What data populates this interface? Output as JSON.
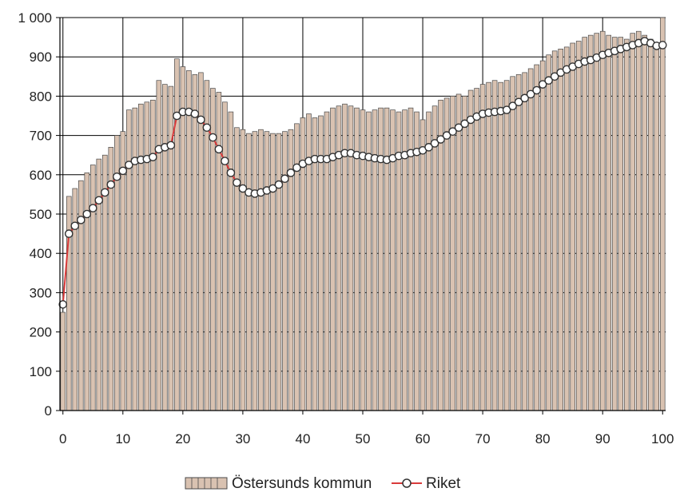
{
  "chart_data": {
    "type": "bar",
    "title": "",
    "xlabel": "",
    "ylabel": "",
    "xlim": [
      -0.5,
      100.5
    ],
    "ylim": [
      0,
      1000
    ],
    "x_ticks": [
      0,
      10,
      20,
      30,
      40,
      50,
      60,
      70,
      80,
      90,
      100
    ],
    "x_tick_labels": [
      "0",
      "10",
      "20",
      "30",
      "40",
      "50",
      "60",
      "70",
      "80",
      "90",
      "100"
    ],
    "y_ticks": [
      0,
      100,
      200,
      300,
      400,
      500,
      600,
      700,
      800,
      900,
      1000
    ],
    "y_tick_labels": [
      "0",
      "100",
      "200",
      "300",
      "400",
      "500",
      "600",
      "700",
      "800",
      "900",
      "1 000"
    ],
    "grid": true,
    "legend_position": "bottom",
    "colors": {
      "bar_fill": "#d9c2b1",
      "bar_stroke": "#4a4a4a",
      "line": "#d93a3a",
      "marker_fill": "#ffffff",
      "marker_stroke": "#333333",
      "grid": "#000000"
    },
    "x": [
      0,
      1,
      2,
      3,
      4,
      5,
      6,
      7,
      8,
      9,
      10,
      11,
      12,
      13,
      14,
      15,
      16,
      17,
      18,
      19,
      20,
      21,
      22,
      23,
      24,
      25,
      26,
      27,
      28,
      29,
      30,
      31,
      32,
      33,
      34,
      35,
      36,
      37,
      38,
      39,
      40,
      41,
      42,
      43,
      44,
      45,
      46,
      47,
      48,
      49,
      50,
      51,
      52,
      53,
      54,
      55,
      56,
      57,
      58,
      59,
      60,
      61,
      62,
      63,
      64,
      65,
      66,
      67,
      68,
      69,
      70,
      71,
      72,
      73,
      74,
      75,
      76,
      77,
      78,
      79,
      80,
      81,
      82,
      83,
      84,
      85,
      86,
      87,
      88,
      89,
      90,
      91,
      92,
      93,
      94,
      95,
      96,
      97,
      98,
      99,
      100
    ],
    "series": [
      {
        "name": "Östersunds kommun",
        "kind": "bar",
        "values": [
          250,
          545,
          565,
          585,
          605,
          625,
          640,
          650,
          670,
          700,
          710,
          765,
          770,
          780,
          785,
          790,
          840,
          830,
          825,
          895,
          875,
          865,
          855,
          860,
          840,
          820,
          810,
          785,
          760,
          720,
          715,
          705,
          710,
          715,
          710,
          705,
          705,
          710,
          715,
          730,
          745,
          755,
          745,
          750,
          760,
          770,
          775,
          780,
          775,
          770,
          765,
          760,
          765,
          770,
          770,
          765,
          760,
          765,
          770,
          760,
          740,
          760,
          775,
          790,
          795,
          800,
          805,
          800,
          815,
          820,
          830,
          835,
          840,
          835,
          840,
          850,
          855,
          860,
          870,
          880,
          890,
          905,
          915,
          920,
          925,
          935,
          940,
          950,
          955,
          960,
          965,
          955,
          950,
          950,
          945,
          960,
          965,
          955,
          945,
          920,
          1000
        ]
      },
      {
        "name": "Riket",
        "kind": "line",
        "values": [
          270,
          450,
          470,
          485,
          500,
          515,
          535,
          555,
          575,
          595,
          610,
          625,
          635,
          638,
          640,
          645,
          665,
          670,
          675,
          750,
          760,
          760,
          755,
          740,
          720,
          695,
          665,
          635,
          605,
          580,
          565,
          555,
          552,
          555,
          560,
          565,
          575,
          590,
          605,
          618,
          628,
          635,
          640,
          640,
          640,
          645,
          650,
          655,
          655,
          650,
          648,
          645,
          642,
          640,
          638,
          642,
          648,
          650,
          655,
          658,
          662,
          670,
          680,
          690,
          700,
          710,
          720,
          730,
          740,
          748,
          755,
          758,
          760,
          762,
          765,
          775,
          785,
          795,
          805,
          815,
          830,
          840,
          850,
          860,
          868,
          875,
          882,
          888,
          892,
          898,
          905,
          910,
          915,
          920,
          925,
          930,
          935,
          940,
          935,
          928,
          930
        ]
      }
    ]
  }
}
